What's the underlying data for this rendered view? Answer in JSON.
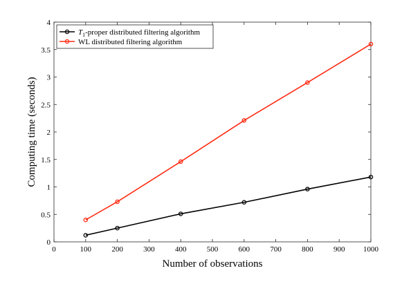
{
  "chart_data": {
    "type": "line",
    "title": "",
    "xlabel": "Number of observations",
    "ylabel": "Computing time (seconds)",
    "xlim": [
      0,
      1000
    ],
    "ylim": [
      0,
      4
    ],
    "xticks": [
      0,
      100,
      200,
      300,
      400,
      500,
      600,
      700,
      800,
      900,
      1000
    ],
    "yticks": [
      0,
      0.5,
      1,
      1.5,
      2,
      2.5,
      3,
      3.5,
      4
    ],
    "xtick_labels": [
      "0",
      "100",
      "200",
      "300",
      "400",
      "500",
      "600",
      "700",
      "800",
      "900",
      "1000"
    ],
    "ytick_labels": [
      "0",
      "0.5",
      "1",
      "1.5",
      "2",
      "2.5",
      "3",
      "3.5",
      "4"
    ],
    "grid": false,
    "legend_position": "top-left",
    "x": [
      100,
      200,
      400,
      600,
      800,
      1000
    ],
    "series": [
      {
        "name": "T1-proper distributed filtering algorithm",
        "name_parts": {
          "sym": "T",
          "sub": "1",
          "rest": "-proper distributed filtering algorithm"
        },
        "color": "#000000",
        "marker": "circle",
        "values": [
          0.12,
          0.25,
          0.51,
          0.72,
          0.96,
          1.18
        ]
      },
      {
        "name": "WL distributed filtering algorithm",
        "color": "#ff2a12",
        "marker": "circle",
        "values": [
          0.4,
          0.73,
          1.46,
          2.21,
          2.9,
          3.6
        ]
      }
    ]
  }
}
